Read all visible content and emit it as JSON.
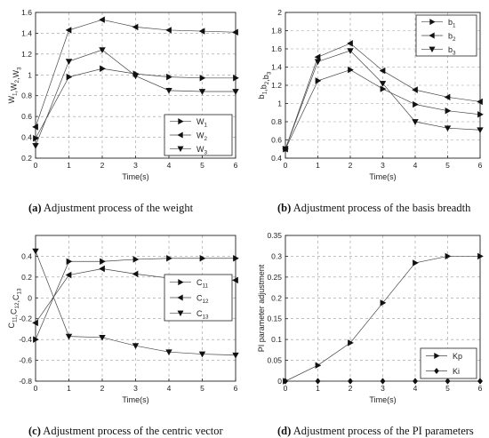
{
  "chart_data": [
    {
      "type": "line",
      "x": [
        0,
        1,
        2,
        3,
        4,
        5,
        6
      ],
      "xlim": [
        0,
        6
      ],
      "ylim": [
        0.2,
        1.6
      ],
      "yticks": [
        0.2,
        0.4,
        0.6,
        0.8,
        1,
        1.2,
        1.4,
        1.6
      ],
      "xlabel": "Time(s)",
      "ylabel": "W1,W2,W3",
      "grid": true,
      "legend_position": "lower-right",
      "caption_tag": "(a)",
      "caption_text": " Adjustment process of the weight",
      "series": [
        {
          "name": "W1",
          "marker": "right",
          "values": [
            0.39,
            0.98,
            1.06,
            1.01,
            0.98,
            0.97,
            0.97
          ]
        },
        {
          "name": "W2",
          "marker": "left",
          "values": [
            0.5,
            1.43,
            1.53,
            1.46,
            1.43,
            1.42,
            1.41
          ]
        },
        {
          "name": "W3",
          "marker": "down",
          "values": [
            0.32,
            1.13,
            1.24,
            0.99,
            0.85,
            0.84,
            0.84
          ]
        }
      ]
    },
    {
      "type": "line",
      "x": [
        0,
        1,
        2,
        3,
        4,
        5,
        6
      ],
      "xlim": [
        0,
        6
      ],
      "ylim": [
        0.4,
        2
      ],
      "yticks": [
        0.4,
        0.6,
        0.8,
        1,
        1.2,
        1.4,
        1.6,
        1.8,
        2
      ],
      "xlabel": "Time(s)",
      "ylabel": "b1,b2,b3",
      "grid": true,
      "legend_position": "top-right",
      "caption_tag": "(b)",
      "caption_text": " Adjustment process of the basis breadth",
      "series": [
        {
          "name": "b1",
          "marker": "right",
          "values": [
            0.5,
            1.25,
            1.37,
            1.16,
            0.99,
            0.92,
            0.88
          ]
        },
        {
          "name": "b2",
          "marker": "left",
          "values": [
            0.5,
            1.51,
            1.66,
            1.36,
            1.15,
            1.07,
            1.02
          ]
        },
        {
          "name": "b3",
          "marker": "down",
          "values": [
            0.5,
            1.46,
            1.58,
            1.22,
            0.8,
            0.73,
            0.71
          ]
        }
      ]
    },
    {
      "type": "line",
      "x": [
        0,
        1,
        2,
        3,
        4,
        5,
        6
      ],
      "xlim": [
        0,
        6
      ],
      "ylim": [
        -0.8,
        0.6
      ],
      "yticks": [
        -0.8,
        -0.6,
        -0.4,
        -0.2,
        0,
        0.2,
        0.4
      ],
      "xlabel": "Time(s)",
      "ylabel": "C11,C12,C13",
      "grid": true,
      "legend_position": "center-right",
      "caption_tag": "(c)",
      "caption_text": " Adjustment process of the centric vector",
      "series": [
        {
          "name": "C11",
          "marker": "right",
          "values": [
            -0.4,
            0.35,
            0.35,
            0.37,
            0.38,
            0.38,
            0.38
          ]
        },
        {
          "name": "C12",
          "marker": "left",
          "values": [
            -0.24,
            0.22,
            0.28,
            0.23,
            0.19,
            0.18,
            0.17
          ]
        },
        {
          "name": "C13",
          "marker": "down",
          "values": [
            0.45,
            -0.37,
            -0.38,
            -0.46,
            -0.52,
            -0.54,
            -0.55
          ]
        }
      ]
    },
    {
      "type": "line",
      "x": [
        0,
        1,
        2,
        3,
        4,
        5,
        6
      ],
      "xlim": [
        0,
        6
      ],
      "ylim": [
        0,
        0.35
      ],
      "yticks": [
        0,
        0.05,
        0.1,
        0.15,
        0.2,
        0.25,
        0.3,
        0.35
      ],
      "xlabel": "Time(s)",
      "ylabel": "PI parameter adjustment",
      "grid": true,
      "legend_position": "lower-right",
      "caption_tag": "(d)",
      "caption_text": " Adjustment process of the PI parameters",
      "series": [
        {
          "name": "Kp",
          "marker": "right",
          "values": [
            0,
            0.038,
            0.092,
            0.188,
            0.284,
            0.3,
            0.3
          ]
        },
        {
          "name": "Ki",
          "marker": "diamond",
          "values": [
            0,
            0,
            0,
            0,
            0,
            0,
            0
          ]
        }
      ]
    }
  ]
}
